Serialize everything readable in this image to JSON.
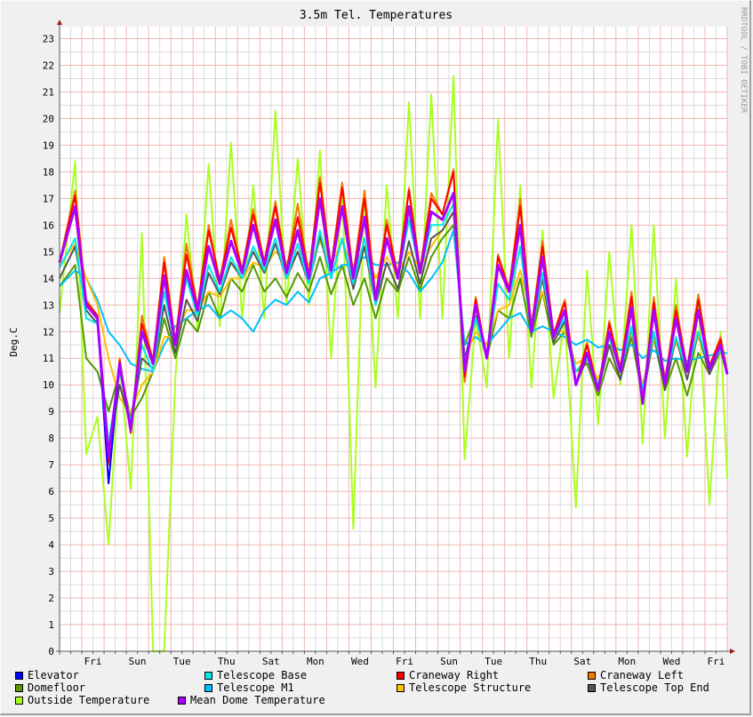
{
  "chart_data": {
    "type": "line",
    "title": "3.5m Tel. Temperatures",
    "ylabel": "Deg.C",
    "xlabel": "",
    "watermark": "RRDTOOL / TOBI OETIKER",
    "ylim": [
      0,
      23.45
    ],
    "xlim_days": [
      0,
      30
    ],
    "grid": true,
    "legend_placement": "bottom",
    "yticks": [
      0,
      1,
      2,
      3,
      4,
      5,
      6,
      7,
      8,
      9,
      10,
      11,
      12,
      13,
      14,
      15,
      16,
      17,
      18,
      19,
      20,
      21,
      22,
      23
    ],
    "xticks": [
      {
        "day": 1.5,
        "label": "Fri"
      },
      {
        "day": 3.5,
        "label": "Sun"
      },
      {
        "day": 5.5,
        "label": "Tue"
      },
      {
        "day": 7.5,
        "label": "Thu"
      },
      {
        "day": 9.5,
        "label": "Sat"
      },
      {
        "day": 11.5,
        "label": "Mon"
      },
      {
        "day": 13.5,
        "label": "Wed"
      },
      {
        "day": 15.5,
        "label": "Fri"
      },
      {
        "day": 17.5,
        "label": "Sun"
      },
      {
        "day": 19.5,
        "label": "Tue"
      },
      {
        "day": 21.5,
        "label": "Thu"
      },
      {
        "day": 23.5,
        "label": "Sat"
      },
      {
        "day": 25.5,
        "label": "Mon"
      },
      {
        "day": 27.5,
        "label": "Wed"
      },
      {
        "day": 29.5,
        "label": "Fri"
      }
    ],
    "x_days": [
      0,
      0.7,
      1.2,
      1.7,
      2.2,
      2.7,
      3.2,
      3.7,
      4.2,
      4.7,
      5.2,
      5.7,
      6.2,
      6.7,
      7.2,
      7.7,
      8.2,
      8.7,
      9.2,
      9.7,
      10.2,
      10.7,
      11.2,
      11.7,
      12.2,
      12.7,
      13.2,
      13.7,
      14.2,
      14.7,
      15.2,
      15.7,
      16.2,
      16.7,
      17.2,
      17.7,
      18.2,
      18.7,
      19.2,
      19.7,
      20.2,
      20.7,
      21.2,
      21.7,
      22.2,
      22.7,
      23.2,
      23.7,
      24.2,
      24.7,
      25.2,
      25.7,
      26.2,
      26.7,
      27.2,
      27.7,
      28.2,
      28.7,
      29.2,
      29.7,
      30
    ],
    "series": [
      {
        "name": "Outside Temperature",
        "color": "#aaff22",
        "legend_order": 9,
        "values": [
          12.7,
          18.4,
          7.4,
          8.8,
          4.0,
          10.8,
          6.1,
          15.7,
          0,
          0,
          10.2,
          16.4,
          12.0,
          18.3,
          12.2,
          19.1,
          12.5,
          17.5,
          12.5,
          20.3,
          13.0,
          18.5,
          13.0,
          18.8,
          11.0,
          17.5,
          4.6,
          17.3,
          9.9,
          17.5,
          12.5,
          20.6,
          12.5,
          20.9,
          12.5,
          21.6,
          7.2,
          12.5,
          9.9,
          20.0,
          11.0,
          17.5,
          9.9,
          15.8,
          9.5,
          12.5,
          5.4,
          14.3,
          8.5,
          15.0,
          10.0,
          16.0,
          7.8,
          16.0,
          8.0,
          14.0,
          7.3,
          13.2,
          5.5,
          12.0,
          6.5
        ]
      },
      {
        "name": "Domefloor",
        "color": "#559900",
        "legend_order": 5,
        "values": [
          13.7,
          14.5,
          11.0,
          10.5,
          9.0,
          10.5,
          8.8,
          9.5,
          10.5,
          12.5,
          11.0,
          12.5,
          12.0,
          13.5,
          12.5,
          14.0,
          13.5,
          14.5,
          13.5,
          14.0,
          13.3,
          14.2,
          13.5,
          14.8,
          13.4,
          14.5,
          13.0,
          14.0,
          12.5,
          14.0,
          13.5,
          14.8,
          13.6,
          14.8,
          15.5,
          16.0,
          11.5,
          12.6,
          11.0,
          12.8,
          12.5,
          14.0,
          11.8,
          13.5,
          11.5,
          12.0,
          10.5,
          10.8,
          9.6,
          11.0,
          10.2,
          11.8,
          9.5,
          11.8,
          9.8,
          11.0,
          9.6,
          11.2,
          10.4,
          11.8,
          10.5
        ]
      },
      {
        "name": "Telescope M1",
        "color": "#00c0ff",
        "legend_order": 6,
        "values": [
          13.7,
          14.3,
          14.0,
          13.2,
          12.0,
          11.5,
          10.8,
          10.6,
          10.5,
          11.5,
          12.2,
          12.5,
          12.8,
          13.0,
          12.5,
          12.8,
          12.5,
          12.0,
          12.8,
          13.2,
          13.0,
          13.5,
          13.1,
          14.0,
          14.2,
          14.5,
          14.5,
          14.8,
          14.5,
          14.5,
          14.6,
          14.2,
          13.5,
          14.0,
          14.6,
          15.8,
          11.5,
          11.8,
          11.5,
          12.0,
          12.5,
          12.7,
          12.0,
          12.2,
          12.0,
          11.8,
          11.5,
          11.7,
          11.4,
          11.5,
          11.3,
          11.5,
          11.0,
          11.3,
          10.9,
          11.0,
          10.9,
          11.0,
          11.1,
          11.2,
          11.2
        ]
      },
      {
        "name": "Telescope Structure",
        "color": "#ffc000",
        "legend_order": 7,
        "values": [
          14.5,
          15.3,
          14.0,
          13.0,
          11.0,
          9.5,
          9.0,
          10.0,
          10.5,
          11.8,
          11.8,
          12.8,
          12.8,
          13.5,
          13.3,
          14.0,
          14.0,
          14.6,
          14.4,
          15.0,
          14.6,
          15.2,
          14.5,
          15.4,
          14.5,
          15.4,
          14.4,
          15.2,
          14.0,
          14.8,
          14.2,
          15.0,
          14.4,
          15.2,
          15.8,
          16.5,
          11.0,
          12.0,
          11.5,
          12.8,
          13.0,
          14.3,
          12.5,
          13.5,
          12.0,
          12.0,
          10.8,
          11.0,
          10.2,
          11.5,
          10.8,
          12.0,
          10.0,
          11.8,
          10.4,
          11.6,
          10.6,
          11.8,
          10.8,
          11.2,
          10.6
        ]
      },
      {
        "name": "Telescope Top End",
        "color": "#555555",
        "legend_order": 8,
        "values": [
          14.0,
          15.2,
          12.8,
          12.3,
          7.5,
          10.0,
          8.5,
          11.0,
          10.6,
          13.0,
          11.2,
          13.2,
          12.4,
          14.2,
          13.4,
          14.6,
          14.0,
          15.0,
          14.2,
          15.3,
          14.0,
          15.0,
          13.8,
          15.6,
          14.0,
          15.5,
          13.6,
          15.2,
          13.0,
          14.6,
          13.6,
          15.4,
          13.8,
          15.5,
          15.8,
          16.5,
          11.0,
          12.5,
          11.0,
          13.8,
          13.2,
          15.2,
          12.0,
          14.0,
          11.6,
          12.4,
          10.0,
          11.0,
          9.8,
          11.5,
          10.2,
          12.2,
          9.4,
          12.0,
          9.8,
          11.8,
          10.2,
          12.0,
          10.4,
          11.3,
          10.4
        ]
      },
      {
        "name": "Telescope Base",
        "color": "#00e8e8",
        "legend_order": 2,
        "values": [
          14.4,
          15.5,
          12.5,
          12.3,
          7.8,
          10.5,
          8.6,
          11.5,
          10.5,
          13.5,
          11.5,
          14.0,
          12.6,
          14.5,
          13.5,
          14.8,
          14.0,
          15.2,
          14.3,
          15.5,
          14.0,
          15.3,
          13.8,
          15.8,
          14.0,
          15.5,
          13.8,
          15.5,
          13.0,
          15.5,
          14.0,
          16.2,
          14.2,
          16.0,
          16.0,
          16.8,
          10.8,
          12.5,
          11.0,
          13.8,
          13.2,
          15.2,
          12.0,
          14.2,
          11.8,
          12.5,
          10.5,
          11.0,
          10.0,
          11.8,
          10.5,
          12.2,
          9.8,
          12.0,
          10.2,
          11.8,
          10.5,
          12.0,
          10.7,
          11.3,
          10.5
        ]
      },
      {
        "name": "Craneway Left",
        "color": "#ee7700",
        "legend_order": 4,
        "values": [
          14.6,
          17.3,
          13.2,
          12.6,
          7.0,
          11.0,
          8.2,
          12.6,
          10.9,
          14.8,
          11.6,
          15.3,
          12.9,
          16.0,
          13.9,
          16.2,
          14.3,
          16.6,
          14.6,
          16.9,
          14.3,
          16.8,
          14.1,
          17.8,
          14.4,
          17.6,
          14.1,
          17.3,
          13.3,
          16.2,
          14.1,
          17.4,
          14.3,
          17.2,
          16.4,
          18.1,
          10.1,
          13.3,
          11.0,
          14.9,
          13.6,
          17.0,
          12.1,
          15.4,
          11.9,
          13.2,
          10.0,
          11.6,
          9.8,
          12.4,
          10.6,
          13.5,
          9.3,
          13.3,
          10.1,
          13.0,
          10.6,
          13.4,
          10.7,
          11.8,
          10.4
        ]
      },
      {
        "name": "Craneway Right",
        "color": "#ff0000",
        "legend_order": 3,
        "values": [
          14.6,
          17.1,
          13.1,
          12.6,
          7.1,
          10.9,
          8.2,
          12.3,
          10.9,
          14.6,
          11.6,
          14.9,
          12.9,
          15.8,
          13.9,
          15.9,
          14.3,
          16.4,
          14.6,
          16.7,
          14.3,
          16.3,
          14.1,
          17.6,
          14.4,
          17.4,
          14.1,
          17.0,
          13.3,
          16.0,
          14.1,
          17.3,
          14.3,
          17.0,
          16.4,
          18.0,
          10.3,
          13.2,
          11.0,
          14.8,
          13.6,
          16.7,
          12.1,
          15.2,
          11.9,
          13.1,
          10.0,
          11.5,
          9.8,
          12.3,
          10.6,
          13.3,
          9.3,
          13.1,
          10.1,
          12.8,
          10.6,
          13.2,
          10.7,
          11.7,
          10.4
        ]
      },
      {
        "name": "Elevator",
        "color": "#0000ff",
        "legend_order": 1,
        "values": [
          14.6,
          16.7,
          13.0,
          12.5,
          6.3,
          10.8,
          8.3,
          12.0,
          10.8,
          14.1,
          11.5,
          14.3,
          12.8,
          15.2,
          13.8,
          15.4,
          14.2,
          16.0,
          14.5,
          16.2,
          14.2,
          15.8,
          14.0,
          17.0,
          14.3,
          16.7,
          14.0,
          16.3,
          13.2,
          15.5,
          14.0,
          16.7,
          14.2,
          16.5,
          16.2,
          17.2,
          10.5,
          13.0,
          11.0,
          14.5,
          13.5,
          16.0,
          12.0,
          14.8,
          11.8,
          12.8,
          10.0,
          11.2,
          9.8,
          12.0,
          10.5,
          12.9,
          9.3,
          12.8,
          10.0,
          12.5,
          10.5,
          12.8,
          10.6,
          11.5,
          10.4
        ]
      },
      {
        "name": "Mean Dome Temperature",
        "color": "#aa00ff",
        "legend_order": 10,
        "values": [
          14.6,
          16.7,
          13.0,
          12.5,
          7.3,
          10.8,
          8.3,
          12.0,
          10.8,
          14.1,
          11.5,
          14.3,
          12.8,
          15.2,
          13.8,
          15.4,
          14.2,
          16.0,
          14.5,
          16.2,
          14.2,
          15.8,
          14.0,
          17.0,
          14.3,
          16.7,
          14.0,
          16.3,
          13.2,
          15.5,
          14.0,
          16.7,
          14.2,
          16.5,
          16.2,
          17.2,
          10.5,
          13.0,
          11.0,
          14.5,
          13.5,
          16.0,
          12.0,
          14.8,
          11.8,
          12.8,
          10.0,
          11.2,
          9.8,
          12.0,
          10.5,
          12.9,
          9.3,
          12.8,
          10.0,
          12.5,
          10.5,
          12.8,
          10.6,
          11.5,
          10.4
        ]
      }
    ],
    "legend": [
      {
        "label": "Elevator",
        "color": "#0000ff"
      },
      {
        "label": "Telescope Base",
        "color": "#00e8e8"
      },
      {
        "label": "Craneway Right",
        "color": "#ff0000"
      },
      {
        "label": "Craneway Left",
        "color": "#ee7700"
      },
      {
        "label": "Domefloor",
        "color": "#559900"
      },
      {
        "label": "Telescope M1",
        "color": "#00c0ff"
      },
      {
        "label": "Telescope Structure",
        "color": "#ffc000"
      },
      {
        "label": "Telescope Top End",
        "color": "#555555"
      },
      {
        "label": "Outside Temperature",
        "color": "#aaff22"
      },
      {
        "label": "Mean Dome Temperature",
        "color": "#aa00ff"
      }
    ]
  }
}
